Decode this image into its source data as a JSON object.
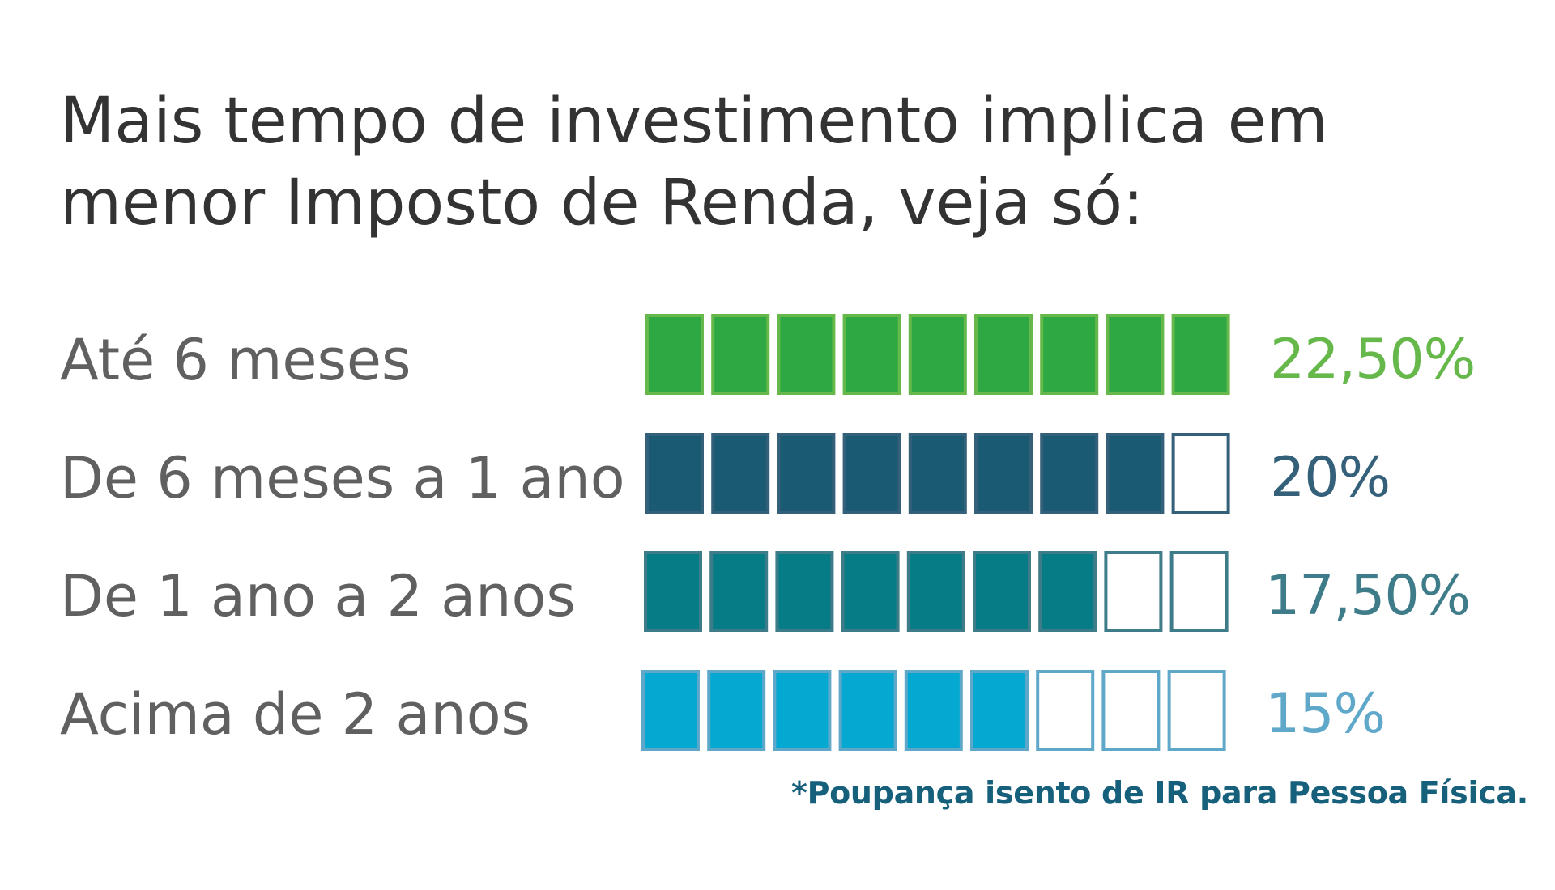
{
  "header": {
    "title_line1": "Mais tempo de investimento implica em",
    "title_line2": "menor Imposto de Renda, veja só:"
  },
  "chart_data": {
    "type": "bar",
    "categories": [
      "Até 6 meses",
      "De 6 meses a 1 ano",
      "De 1 ano a 2 anos",
      "Acima de 2 anos"
    ],
    "values": [
      22.5,
      20,
      17.5,
      15
    ],
    "value_labels": [
      "22,50%",
      "20%",
      "17,50%",
      "15%"
    ],
    "unit": "%",
    "icon_count": 9,
    "colors": [
      "#2ea843",
      "#1b5a73",
      "#067c86",
      "#04a8d0"
    ],
    "outline_colors": [
      "#66b84a",
      "#35607a",
      "#3f7c89",
      "#5fa8c9"
    ],
    "grid": false
  },
  "footnote": "*Poupança isento de IR para Pessoa Física."
}
